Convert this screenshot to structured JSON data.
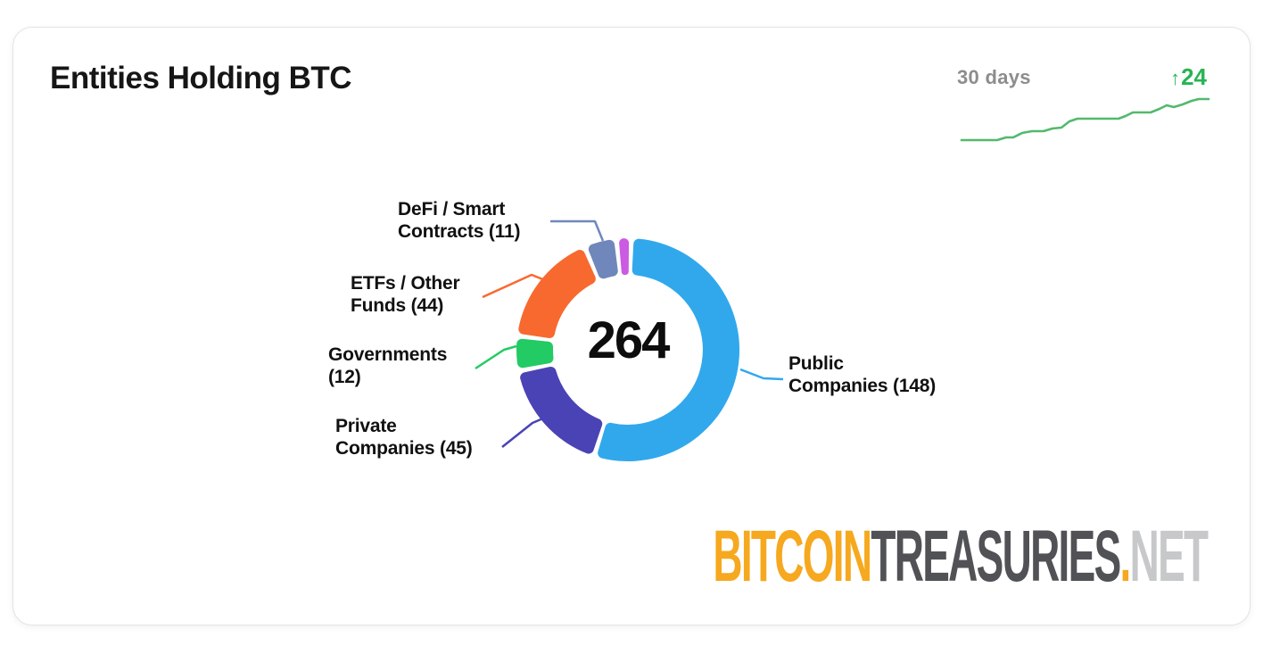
{
  "header": {
    "title": "Entities Holding BTC",
    "period_label": "30 days",
    "period_color": "#8d8d8d",
    "change_arrow": "↑",
    "change_value": "24",
    "change_color": "#28b453"
  },
  "sparkline": {
    "color": "#53b96d"
  },
  "chart_data": {
    "type": "pie",
    "subtype": "donut",
    "title": "Entities Holding BTC",
    "center_total": "264",
    "start_angle_deg": 3,
    "gap_deg": 2.5,
    "legend_position": "callout-labels",
    "segments": [
      {
        "name": "Public Companies",
        "value": 148,
        "label": "Public\nCompanies (148)",
        "color": "#31a8ec"
      },
      {
        "name": "Private Companies",
        "value": 45,
        "label": "Private\nCompanies (45)",
        "color": "#4a43b5"
      },
      {
        "name": "Governments",
        "value": 12,
        "label": "Governments\n(12)",
        "color": "#22cb63"
      },
      {
        "name": "ETFs / Other Funds",
        "value": 44,
        "label": "ETFs / Other\nFunds (44)",
        "color": "#f8692f"
      },
      {
        "name": "DeFi / Smart Contracts",
        "value": 11,
        "label": "DeFi / Smart\nContracts (11)",
        "color": "#7087bc"
      },
      {
        "name": "Unlabeled Sliver",
        "value": 4,
        "label": "",
        "color": "#cb5be3"
      }
    ]
  },
  "logo": {
    "parts": [
      {
        "text": "BITCOIN",
        "color": "#f6a81e"
      },
      {
        "text": "TREASURIES",
        "color": "#515256"
      },
      {
        "text": ".",
        "color": "#f6a81e"
      },
      {
        "text": "NET",
        "color": "#c7c8ca"
      }
    ]
  }
}
